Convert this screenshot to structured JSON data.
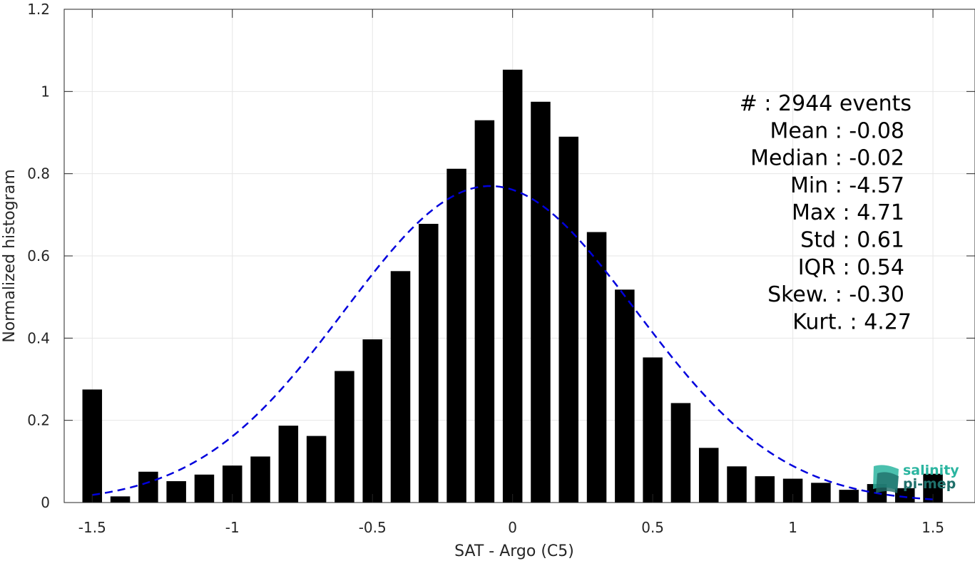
{
  "chart_data": {
    "type": "bar",
    "xlabel": "SAT - Argo (C5)",
    "ylabel": "Normalized histogram",
    "xlim": [
      -1.6,
      1.65
    ],
    "ylim": [
      0,
      1.2
    ],
    "x_ticks": [
      -1.5,
      -1,
      -0.5,
      0,
      0.5,
      1,
      1.5
    ],
    "x_tick_labels": [
      "-1.5",
      "-1",
      "-0.5",
      "0",
      "0.5",
      "1",
      "1.5"
    ],
    "y_ticks": [
      0,
      0.2,
      0.4,
      0.6,
      0.8,
      1,
      1.2
    ],
    "y_tick_labels": [
      "0",
      "0.2",
      "0.4",
      "0.6",
      "0.8",
      "1",
      "1.2"
    ],
    "grid": true,
    "bar_color": "#000000",
    "bin_width": 0.1,
    "bar_width_fraction": 0.7,
    "x": [
      -1.5,
      -1.4,
      -1.3,
      -1.2,
      -1.1,
      -1.0,
      -0.9,
      -0.8,
      -0.7,
      -0.6,
      -0.5,
      -0.4,
      -0.3,
      -0.2,
      -0.1,
      0.0,
      0.1,
      0.2,
      0.3,
      0.4,
      0.5,
      0.6,
      0.7,
      0.8,
      0.9,
      1.0,
      1.1,
      1.2,
      1.3,
      1.4,
      1.5
    ],
    "values": [
      0.275,
      0.015,
      0.075,
      0.052,
      0.068,
      0.09,
      0.112,
      0.187,
      0.162,
      0.32,
      0.397,
      0.563,
      0.678,
      0.812,
      0.93,
      1.053,
      0.975,
      0.89,
      0.658,
      0.518,
      0.353,
      0.242,
      0.133,
      0.088,
      0.064,
      0.058,
      0.048,
      0.031,
      0.045,
      0.035,
      0.07
    ],
    "fit_curve": {
      "type": "gaussian",
      "mean": -0.08,
      "std": 0.52,
      "peak": 0.77,
      "color": "#0000dd",
      "style": "dashed",
      "x_range": [
        -1.5,
        1.5
      ]
    },
    "stats": [
      {
        "label": "#  : 2944 events"
      },
      {
        "label": "Mean : -0.08"
      },
      {
        "label": "Median : -0.02"
      },
      {
        "label": "Min : -4.57"
      },
      {
        "label": "Max : 4.71"
      },
      {
        "label": "Std : 0.61"
      },
      {
        "label": "IQR : 0.54"
      },
      {
        "label": "Skew. : -0.30"
      },
      {
        "label": "Kurt. : 4.27"
      }
    ]
  },
  "logo": {
    "line1": "salinity",
    "line2": "pi-mep",
    "color1": "#2bb5a0",
    "color2": "#1f6f6a"
  }
}
